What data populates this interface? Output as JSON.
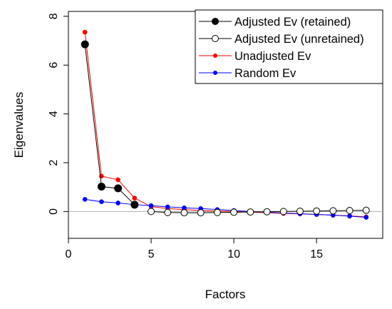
{
  "chart_data": {
    "type": "line",
    "title": "",
    "xlabel": "Factors",
    "ylabel": "Eigenvalues",
    "xlim": [
      0,
      19
    ],
    "ylim": [
      -1.1,
      8.2
    ],
    "x_ticks": [
      0,
      5,
      10,
      15
    ],
    "y_ticks": [
      0,
      2,
      4,
      6,
      8
    ],
    "reference_line_y": 0,
    "grid": false,
    "legend_position": "top-right",
    "series": [
      {
        "name": "Adjusted Ev (retained)",
        "color": "#000000",
        "marker": "filled-circle",
        "x": [
          1,
          2,
          3,
          4
        ],
        "values": [
          6.85,
          1.02,
          0.95,
          0.28
        ]
      },
      {
        "name": "Adjusted Ev (unretained)",
        "color": "#000000",
        "marker": "open-circle",
        "x": [
          5,
          6,
          7,
          8,
          9,
          10,
          11,
          12,
          13,
          14,
          15,
          16,
          17,
          18
        ],
        "values": [
          0.0,
          -0.04,
          -0.05,
          -0.05,
          -0.04,
          -0.03,
          -0.02,
          -0.01,
          0.0,
          0.01,
          0.02,
          0.03,
          0.04,
          0.05
        ]
      },
      {
        "name": "Unadjusted Ev",
        "color": "#ff0000",
        "marker": "small-filled-circle",
        "x": [
          1,
          2,
          3,
          4,
          5,
          6,
          7,
          8,
          9,
          10,
          11,
          12,
          13,
          14,
          15,
          16,
          17,
          18
        ],
        "values": [
          7.35,
          1.45,
          1.3,
          0.55,
          0.2,
          0.12,
          0.08,
          0.04,
          0.02,
          0.0,
          -0.02,
          -0.05,
          -0.08,
          -0.1,
          -0.12,
          -0.15,
          -0.18,
          -0.22
        ]
      },
      {
        "name": "Random Ev",
        "color": "#0000ff",
        "marker": "small-filled-circle",
        "x": [
          1,
          2,
          3,
          4,
          5,
          6,
          7,
          8,
          9,
          10,
          11,
          12,
          13,
          14,
          15,
          16,
          17,
          18
        ],
        "values": [
          0.5,
          0.4,
          0.35,
          0.28,
          0.24,
          0.19,
          0.15,
          0.12,
          0.08,
          0.04,
          0.0,
          -0.03,
          -0.06,
          -0.09,
          -0.12,
          -0.15,
          -0.19,
          -0.24
        ]
      }
    ]
  }
}
